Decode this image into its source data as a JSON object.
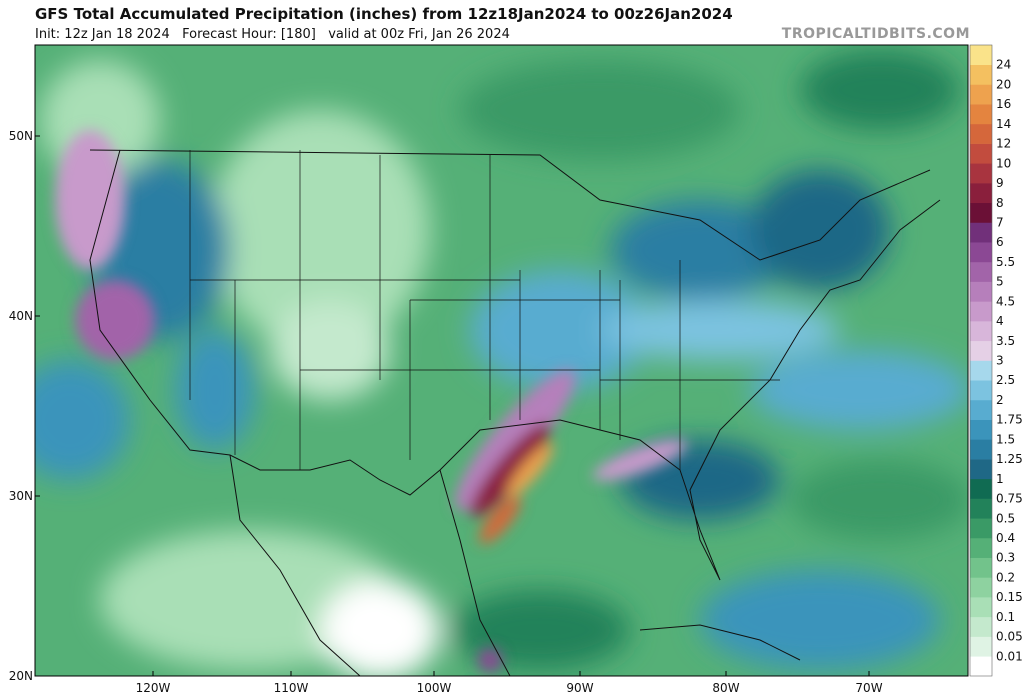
{
  "header": {
    "title": "GFS Total Accumulated Precipitation (inches) from 12z18Jan2024 to 00z26Jan2024",
    "subtitle": "Init: 12z Jan 18 2024   Forecast Hour: [180]   valid at 00z Fri, Jan 26 2024",
    "site": "TROPICALTIDBITS.COM"
  },
  "map": {
    "lat_labels": [
      "50N",
      "40N",
      "30N",
      "20N"
    ],
    "lon_labels": [
      "120W",
      "110W",
      "100W",
      "90W",
      "80W",
      "70W"
    ]
  },
  "legend": {
    "labels": [
      "0.01",
      "0.05",
      "0.1",
      "0.15",
      "0.2",
      "0.3",
      "0.4",
      "0.5",
      "0.75",
      "1",
      "1.25",
      "1.5",
      "1.75",
      "2",
      "2.5",
      "3",
      "3.5",
      "4",
      "4.5",
      "5",
      "5.5",
      "6",
      "7",
      "8",
      "9",
      "10",
      "12",
      "14",
      "16",
      "20",
      "24"
    ],
    "colors": [
      "#ffffff",
      "#dff3e4",
      "#c4e9cd",
      "#a9dfb6",
      "#8ed2a0",
      "#72c38b",
      "#55b077",
      "#3a9a66",
      "#22825a",
      "#106b52",
      "#1f6886",
      "#2a7ea3",
      "#3b94bb",
      "#58acd0",
      "#7cc3e0",
      "#a6d8ec",
      "#e5d0e6",
      "#d8b6da",
      "#c89acb",
      "#b67fbb",
      "#a264a9",
      "#8b4894",
      "#71307a",
      "#6b1036",
      "#8a1f3c",
      "#a8343f",
      "#c24c3e",
      "#d5673b",
      "#e4843f",
      "#eea24e",
      "#f4c060",
      "#fae38a"
    ]
  }
}
